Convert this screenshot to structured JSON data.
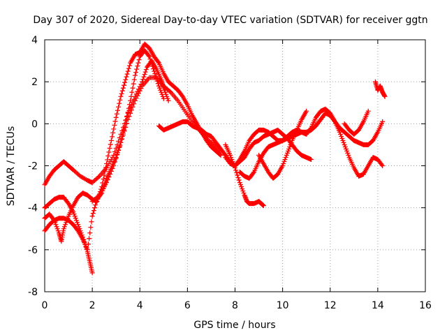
{
  "chart_data": {
    "type": "scatter",
    "title": "Day 307 of 2020, Sidereal Day-to-day VTEC variation (SDTVAR) for receiver ggtn",
    "xlabel": "GPS time / hours",
    "ylabel": "SDTVAR / TECUs",
    "xlim": [
      0,
      16
    ],
    "ylim": [
      -8,
      4
    ],
    "xticks": [
      0,
      2,
      4,
      6,
      8,
      10,
      12,
      14,
      16
    ],
    "yticks": [
      -8,
      -6,
      -4,
      -2,
      0,
      2,
      4
    ],
    "xtick_labels": [
      "0",
      "2",
      "4",
      "6",
      "8",
      "10",
      "12",
      "14",
      "16"
    ],
    "ytick_labels": [
      "-8",
      "-6",
      "-4",
      "-2",
      "0",
      "2",
      "4"
    ],
    "grid": true,
    "marker": "+",
    "color": "#ff0000",
    "series": [
      {
        "name": "track-1",
        "x": [
          0.0,
          0.2,
          0.4,
          0.6,
          0.8,
          1.0,
          1.2,
          1.5,
          1.8,
          2.0,
          2.3,
          2.6,
          2.9,
          3.2,
          3.5,
          3.8,
          4.1,
          4.3,
          4.5,
          4.7,
          4.9,
          5.0,
          5.2
        ],
        "y": [
          -2.9,
          -2.5,
          -2.2,
          -2.0,
          -1.8,
          -2.0,
          -2.2,
          -2.5,
          -2.7,
          -2.8,
          -2.5,
          -2.1,
          -1.5,
          -0.5,
          0.5,
          1.3,
          2.0,
          2.7,
          3.0,
          2.6,
          2.1,
          1.7,
          1.1
        ]
      },
      {
        "name": "track-2",
        "x": [
          0.0,
          0.2,
          0.4,
          0.6,
          0.8,
          1.0,
          1.2,
          1.4,
          1.6,
          1.8,
          1.9,
          2.0
        ],
        "y": [
          -4.0,
          -3.8,
          -3.6,
          -3.5,
          -3.5,
          -3.8,
          -4.2,
          -4.8,
          -5.4,
          -6.1,
          -6.6,
          -7.1
        ]
      },
      {
        "name": "track-3",
        "x": [
          0.0,
          0.2,
          0.4,
          0.6,
          0.8,
          1.0,
          1.2,
          1.4,
          1.6,
          1.8,
          2.0,
          2.2,
          2.4,
          2.6,
          2.8,
          3.0,
          3.2,
          3.4,
          3.6,
          3.8,
          4.0,
          4.2,
          4.4,
          4.6,
          4.8,
          5.0
        ],
        "y": [
          -5.1,
          -4.8,
          -4.6,
          -4.5,
          -4.5,
          -4.6,
          -4.8,
          -5.1,
          -5.5,
          -6.0,
          -4.4,
          -3.6,
          -3.3,
          -2.6,
          -2.1,
          -1.6,
          -0.9,
          0.0,
          1.1,
          2.3,
          3.2,
          3.5,
          3.2,
          2.5,
          1.8,
          1.2
        ]
      },
      {
        "name": "track-4",
        "x": [
          0.0,
          0.2,
          0.4,
          0.6,
          0.7,
          0.8,
          1.0,
          1.2,
          1.4,
          1.6,
          1.8,
          2.0,
          2.2,
          2.4,
          2.6,
          2.8,
          3.0,
          3.2,
          3.4,
          3.6,
          3.8,
          4.0,
          4.2,
          4.4,
          4.6,
          4.8,
          5.0,
          5.2,
          5.4,
          5.6,
          5.8,
          6.0,
          6.2,
          6.4,
          6.6,
          6.8,
          7.0,
          7.2,
          7.4
        ],
        "y": [
          -4.5,
          -4.3,
          -4.6,
          -5.2,
          -5.6,
          -5.0,
          -4.4,
          -3.9,
          -3.5,
          -3.3,
          -3.4,
          -3.6,
          -3.7,
          -3.0,
          -1.9,
          -0.8,
          0.3,
          1.3,
          2.1,
          2.9,
          3.3,
          3.4,
          3.8,
          3.6,
          3.2,
          2.9,
          2.4,
          2.0,
          1.8,
          1.6,
          1.3,
          0.9,
          0.4,
          0.0,
          -0.4,
          -0.8,
          -1.1,
          -1.3,
          -1.5
        ]
      },
      {
        "name": "track-5",
        "x": [
          2.0,
          2.3,
          2.6,
          2.9,
          3.2,
          3.5,
          3.8,
          4.1,
          4.4,
          4.7,
          5.0,
          5.3,
          5.6,
          5.9,
          6.2,
          6.5,
          6.8,
          7.1,
          7.4
        ],
        "y": [
          -3.7,
          -3.4,
          -2.8,
          -2.0,
          -0.9,
          0.2,
          1.1,
          1.8,
          2.2,
          2.2,
          1.8,
          1.5,
          1.1,
          0.6,
          0.1,
          -0.3,
          -0.7,
          -1.0,
          -1.3
        ]
      },
      {
        "name": "track-6",
        "x": [
          4.8,
          5.0,
          5.2,
          5.4,
          5.6,
          5.8,
          6.0,
          6.2,
          6.4,
          6.6,
          6.8,
          7.0,
          7.2,
          7.4,
          7.6,
          7.8,
          8.0,
          8.2,
          8.4,
          8.6,
          8.8,
          9.0,
          9.2,
          9.4,
          9.6,
          9.8,
          10.0,
          10.2,
          10.4,
          10.6,
          10.8,
          11.0,
          11.2
        ],
        "y": [
          -0.1,
          -0.3,
          -0.2,
          -0.1,
          0.0,
          0.1,
          0.1,
          -0.1,
          -0.2,
          -0.3,
          -0.5,
          -0.6,
          -0.9,
          -1.2,
          -1.5,
          -1.8,
          -2.0,
          -1.8,
          -1.6,
          -1.2,
          -0.9,
          -0.8,
          -0.6,
          -0.5,
          -0.4,
          -0.3,
          -0.5,
          -0.7,
          -1.0,
          -1.3,
          -1.5,
          -1.6,
          -1.7
        ]
      },
      {
        "name": "track-7",
        "x": [
          7.6,
          7.8,
          8.0,
          8.2,
          8.4,
          8.5,
          8.6,
          8.8,
          9.0,
          9.1,
          9.2
        ],
        "y": [
          -1.0,
          -1.5,
          -2.1,
          -2.8,
          -3.4,
          -3.7,
          -3.8,
          -3.8,
          -3.7,
          -3.8,
          -3.9
        ]
      },
      {
        "name": "track-8",
        "x": [
          7.6,
          7.8,
          8.0,
          8.2,
          8.4,
          8.6,
          8.8,
          9.0,
          9.2,
          9.4,
          9.6,
          9.8,
          10.0,
          10.2,
          10.4,
          10.6,
          10.8,
          11.0,
          11.2,
          11.4,
          11.6,
          11.8,
          12.0,
          12.2,
          12.4,
          12.6,
          12.8,
          13.0,
          13.2,
          13.4,
          13.6,
          13.8,
          14.0,
          14.2
        ],
        "y": [
          -1.6,
          -1.9,
          -2.0,
          -1.7,
          -1.3,
          -0.8,
          -0.5,
          -0.3,
          -0.3,
          -0.4,
          -0.6,
          -0.8,
          -0.8,
          -0.7,
          -0.6,
          -0.5,
          -0.4,
          -0.4,
          -0.3,
          -0.1,
          0.2,
          0.5,
          0.4,
          0.1,
          -0.2,
          -0.4,
          -0.6,
          -0.8,
          -0.9,
          -1.0,
          -1.0,
          -0.8,
          -0.4,
          0.1
        ]
      },
      {
        "name": "track-9",
        "x": [
          8.2,
          8.4,
          8.6,
          8.8,
          9.0,
          9.2,
          9.4,
          9.6,
          9.8,
          10.0,
          10.2,
          10.4,
          10.6,
          10.8,
          11.0,
          11.2,
          11.4,
          11.6,
          11.8,
          12.0,
          12.2,
          12.4,
          12.6,
          12.8,
          13.0,
          13.2,
          13.4,
          13.6,
          13.8,
          14.0,
          14.2
        ],
        "y": [
          -2.3,
          -2.5,
          -2.6,
          -2.3,
          -1.8,
          -1.4,
          -1.1,
          -1.0,
          -0.9,
          -0.8,
          -0.6,
          -0.4,
          -0.3,
          -0.4,
          -0.5,
          -0.2,
          0.3,
          0.6,
          0.7,
          0.5,
          0.1,
          -0.4,
          -1.0,
          -1.6,
          -2.1,
          -2.5,
          -2.4,
          -2.0,
          -1.6,
          -1.7,
          -2.0
        ]
      },
      {
        "name": "track-10",
        "x": [
          9.0,
          9.2,
          9.4,
          9.6,
          9.8,
          10.0,
          10.2,
          10.4,
          10.6,
          10.8,
          11.0
        ],
        "y": [
          -1.5,
          -1.9,
          -2.3,
          -2.6,
          -2.4,
          -2.0,
          -1.4,
          -0.8,
          -0.3,
          0.2,
          0.6
        ]
      },
      {
        "name": "track-11",
        "x": [
          12.6,
          12.8,
          13.0,
          13.2,
          13.4,
          13.6
        ],
        "y": [
          0.0,
          -0.3,
          -0.5,
          -0.3,
          0.1,
          0.6
        ]
      },
      {
        "name": "track-12",
        "x": [
          13.9,
          14.0,
          14.1,
          14.2,
          14.3
        ],
        "y": [
          2.0,
          1.6,
          1.8,
          1.5,
          1.3
        ]
      }
    ]
  }
}
